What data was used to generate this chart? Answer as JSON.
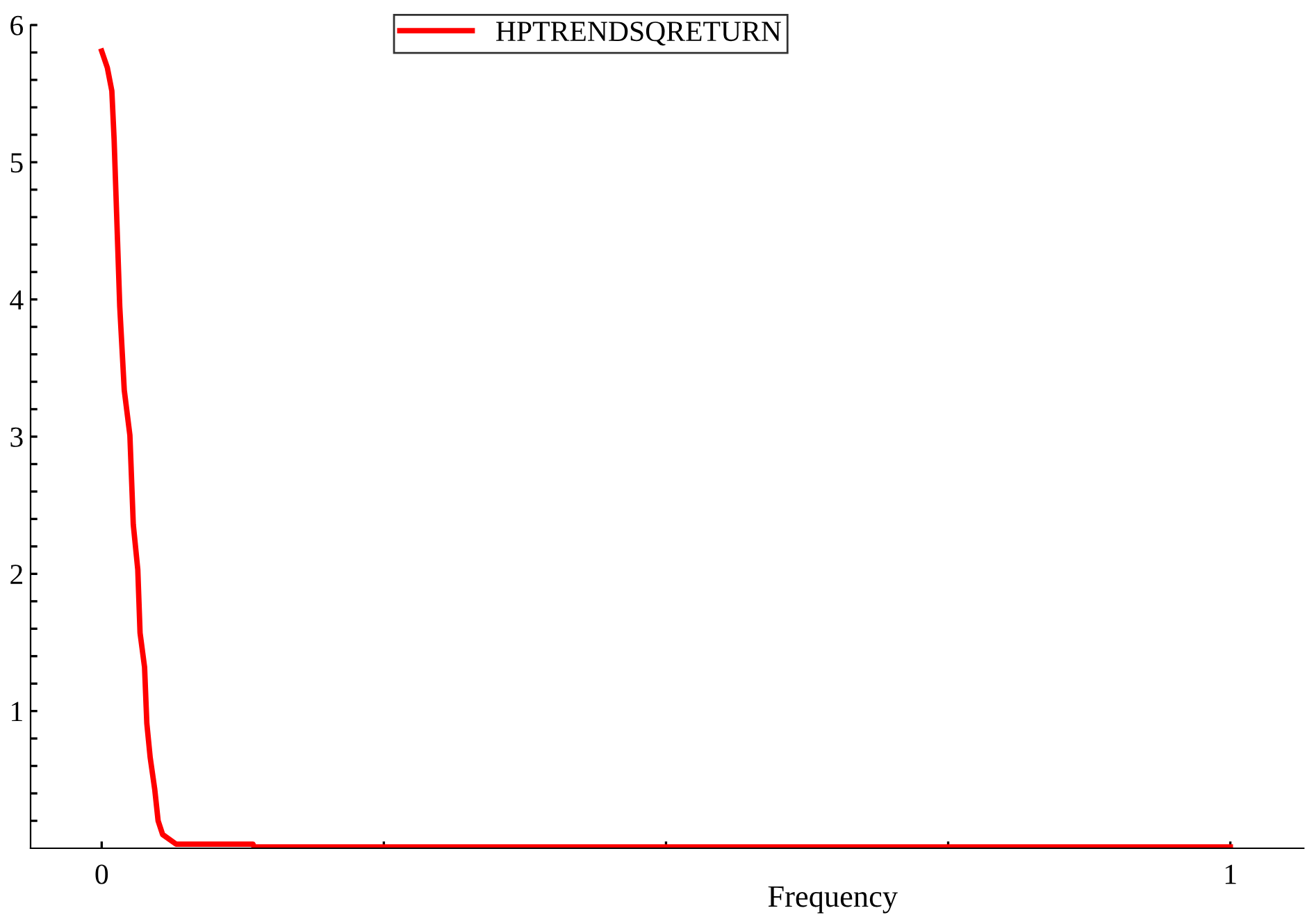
{
  "chart_data": {
    "type": "line",
    "xlabel": "Frequency",
    "legend": "top",
    "xlim": [
      -0.063,
      1.065
    ],
    "ylim": [
      0,
      6
    ],
    "xticks": [
      0,
      {
        "value": 0.25,
        "label": null
      },
      {
        "value": 0.5,
        "label": null
      },
      {
        "value": 0.75,
        "label": null
      },
      1
    ],
    "yticks": [
      {
        "value": 0.2,
        "label": null
      },
      {
        "value": 0.4,
        "label": null
      },
      {
        "value": 0.6,
        "label": null
      },
      {
        "value": 0.8,
        "label": null
      },
      1,
      {
        "value": 1.2,
        "label": null
      },
      {
        "value": 1.4,
        "label": null
      },
      {
        "value": 1.6,
        "label": null
      },
      {
        "value": 1.8,
        "label": null
      },
      2,
      {
        "value": 2.2,
        "label": null
      },
      {
        "value": 2.4,
        "label": null
      },
      {
        "value": 2.6,
        "label": null
      },
      {
        "value": 2.8,
        "label": null
      },
      3,
      {
        "value": 3.2,
        "label": null
      },
      {
        "value": 3.4,
        "label": null
      },
      {
        "value": 3.6,
        "label": null
      },
      {
        "value": 3.8,
        "label": null
      },
      4,
      {
        "value": 4.2,
        "label": null
      },
      {
        "value": 4.4,
        "label": null
      },
      {
        "value": 4.6,
        "label": null
      },
      {
        "value": 4.8,
        "label": null
      },
      5,
      {
        "value": 5.2,
        "label": null
      },
      {
        "value": 5.4,
        "label": null
      },
      {
        "value": 5.6,
        "label": null
      },
      {
        "value": 5.8,
        "label": null
      },
      6
    ],
    "grid": false,
    "marker": "none",
    "line_style": "solid",
    "series": [
      {
        "name": "HPTRENDSQRETURN",
        "color": "#ff0000",
        "x": [
          0,
          0.005,
          0.009,
          0.011,
          0.0135,
          0.016,
          0.02,
          0.025,
          0.028,
          0.032,
          0.034,
          0.038,
          0.04,
          0.043,
          0.047,
          0.05,
          0.054,
          0.066,
          0.134,
          0.135,
          1
        ],
        "values": [
          5.81,
          5.69,
          5.52,
          5.17,
          4.56,
          3.95,
          3.34,
          3.01,
          2.36,
          2.03,
          1.57,
          1.32,
          0.91,
          0.66,
          0.43,
          0.2,
          0.1,
          0.03,
          0.03,
          0.01,
          0.01
        ]
      }
    ]
  }
}
